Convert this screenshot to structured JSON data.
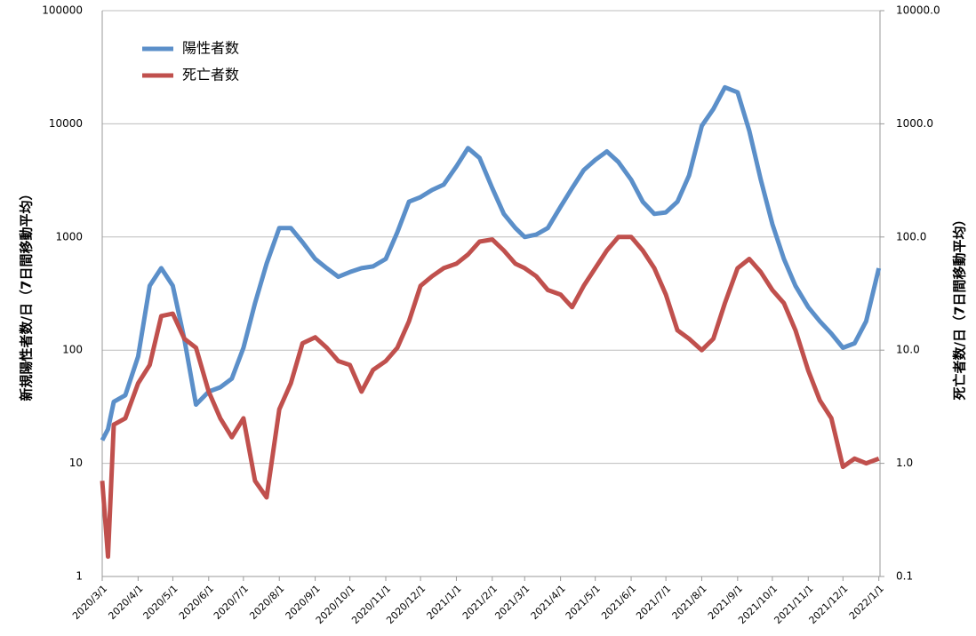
{
  "chart_data": {
    "type": "line",
    "y_label": "新規陽性者数/日（7日間移動平均）",
    "y2_label": "死亡者数/日（7日間移動平均）",
    "log_scale": true,
    "grid": true,
    "legend": "top-left",
    "xlim": [
      "2020/3/1",
      "2022/1/2"
    ],
    "xticks": [
      "2020/3/1",
      "2020/4/1",
      "2020/5/1",
      "2020/6/1",
      "2020/7/1",
      "2020/8/1",
      "2020/9/1",
      "2020/10/1",
      "2020/11/1",
      "2020/12/1",
      "2021/1/1",
      "2021/2/1",
      "2021/3/1",
      "2021/4/1",
      "2021/5/1",
      "2021/6/1",
      "2021/7/1",
      "2021/8/1",
      "2021/9/1",
      "2021/10/1",
      "2021/11/1",
      "2021/12/1",
      "2022/1/1"
    ],
    "ylim": [
      1,
      100000
    ],
    "yticks": [
      1,
      10,
      100,
      1000,
      10000,
      100000
    ],
    "y2lim": [
      0.1,
      10000
    ],
    "y2ticks": [
      0.1,
      {
        "value": 1,
        "label": "1.0"
      },
      {
        "value": 10,
        "label": "10.0"
      },
      {
        "value": 100,
        "label": "100.0"
      },
      {
        "value": 1000,
        "label": "1000.0"
      },
      {
        "value": 10000,
        "label": "10000.0"
      }
    ],
    "x": [
      "2020/3/1",
      "2020/3/6",
      "2020/3/11",
      "2020/3/21",
      "2020/4/1",
      "2020/4/11",
      "2020/4/21",
      "2020/5/1",
      "2020/5/11",
      "2020/5/21",
      "2020/6/1",
      "2020/6/11",
      "2020/6/21",
      "2020/7/1",
      "2020/7/11",
      "2020/7/21",
      "2020/8/1",
      "2020/8/11",
      "2020/8/21",
      "2020/9/1",
      "2020/9/11",
      "2020/9/21",
      "2020/10/1",
      "2020/10/11",
      "2020/10/21",
      "2020/11/1",
      "2020/11/11",
      "2020/11/21",
      "2020/12/1",
      "2020/12/11",
      "2020/12/21",
      "2021/1/1",
      "2021/1/11",
      "2021/1/21",
      "2021/2/1",
      "2021/2/11",
      "2021/2/21",
      "2021/3/1",
      "2021/3/11",
      "2021/3/21",
      "2021/4/1",
      "2021/4/11",
      "2021/4/21",
      "2021/5/1",
      "2021/5/11",
      "2021/5/21",
      "2021/6/1",
      "2021/6/11",
      "2021/6/21",
      "2021/7/1",
      "2021/7/11",
      "2021/7/21",
      "2021/8/1",
      "2021/8/11",
      "2021/8/21",
      "2021/9/1",
      "2021/9/11",
      "2021/9/21",
      "2021/10/1",
      "2021/10/11",
      "2021/10/21",
      "2021/11/1",
      "2021/11/11",
      "2021/11/21",
      "2021/12/1",
      "2021/12/11",
      "2021/12/21",
      "2022/1/1"
    ],
    "series": [
      {
        "name": "陽性者数",
        "color": "#5b8fc9",
        "values": [
          16,
          20,
          35,
          40,
          88,
          370,
          530,
          370,
          125,
          33,
          43,
          47,
          56,
          105,
          260,
          580,
          1200,
          1200,
          900,
          640,
          530,
          445,
          490,
          530,
          550,
          640,
          1100,
          2050,
          2250,
          2600,
          2900,
          4200,
          6100,
          5000,
          2700,
          1600,
          1200,
          1000,
          1050,
          1200,
          1850,
          2700,
          3900,
          4800,
          5700,
          4600,
          3200,
          2050,
          1600,
          1650,
          2050,
          3500,
          9600,
          13500,
          21000,
          19000,
          8700,
          3200,
          1300,
          640,
          370,
          240,
          180,
          140,
          105,
          115,
          180,
          530
        ]
      },
      {
        "name": "死亡者数",
        "color": "#c0504d",
        "axis": "y2",
        "values": [
          0.7,
          0.15,
          2.2,
          2.5,
          5.1,
          7.4,
          20,
          21,
          12.6,
          10.5,
          4.3,
          2.5,
          1.7,
          2.5,
          0.7,
          0.5,
          3,
          5.1,
          11.5,
          13,
          10.5,
          8,
          7.4,
          4.3,
          6.7,
          8,
          10.5,
          18,
          37,
          45,
          53,
          58,
          70,
          91,
          95,
          76,
          58,
          53,
          45,
          34,
          31,
          24,
          37,
          53,
          76,
          100,
          100,
          76,
          53,
          31,
          15,
          12.6,
          10,
          12.6,
          26,
          53,
          64,
          49,
          34,
          26,
          15,
          6.6,
          3.6,
          2.5,
          0.93,
          1.1,
          1.0,
          1.1
        ]
      }
    ]
  }
}
